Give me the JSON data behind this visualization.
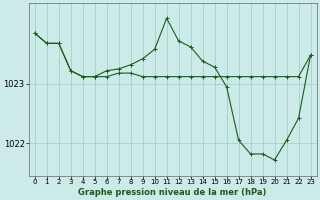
{
  "title": "Graphe pression niveau de la mer (hPa)",
  "background_color": "#cceae8",
  "grid_color": "#a8d4d0",
  "line_color": "#1a5c1a",
  "xlim": [
    -0.5,
    23.5
  ],
  "ylim": [
    1021.45,
    1024.35
  ],
  "yticks": [
    1022,
    1023
  ],
  "xticks": [
    0,
    1,
    2,
    3,
    4,
    5,
    6,
    7,
    8,
    9,
    10,
    11,
    12,
    13,
    14,
    15,
    16,
    17,
    18,
    19,
    20,
    21,
    22,
    23
  ],
  "series1_x": [
    0,
    1,
    2,
    3,
    4,
    5,
    6,
    7,
    8,
    9,
    10,
    11,
    12,
    13,
    14,
    15,
    16,
    17,
    18,
    19,
    20,
    21,
    22,
    23
  ],
  "series1_y": [
    1023.85,
    1023.68,
    1023.68,
    1023.22,
    1023.12,
    1023.12,
    1023.12,
    1023.18,
    1023.18,
    1023.12,
    1023.12,
    1023.12,
    1023.12,
    1023.12,
    1023.12,
    1023.12,
    1023.12,
    1023.12,
    1023.12,
    1023.12,
    1023.12,
    1023.12,
    1023.12,
    1023.48
  ],
  "series2_x": [
    0,
    1,
    2,
    3,
    4,
    5,
    6,
    7,
    8,
    9,
    10,
    11,
    12,
    13,
    14,
    15,
    16,
    17,
    18,
    19,
    20,
    21,
    22,
    23
  ],
  "series2_y": [
    1023.85,
    1023.68,
    1023.68,
    1023.22,
    1023.12,
    1023.12,
    1023.22,
    1023.25,
    1023.32,
    1023.42,
    1023.58,
    1024.1,
    1023.72,
    1023.62,
    1023.38,
    1023.28,
    1022.95,
    1022.05,
    1021.82,
    1021.82,
    1021.72,
    1022.05,
    1022.42,
    1023.48
  ]
}
